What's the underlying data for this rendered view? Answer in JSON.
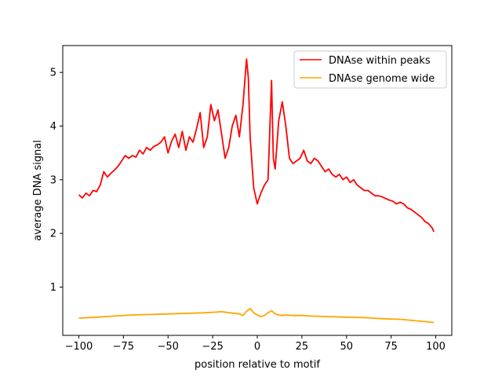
{
  "chart_data": {
    "type": "line",
    "xlabel": "position relative to motif",
    "ylabel": "average DNA signal",
    "xlim": [
      -109,
      109
    ],
    "ylim": [
      0.1,
      5.5
    ],
    "xticks": [
      -100,
      -75,
      -50,
      -25,
      0,
      25,
      50,
      75,
      100
    ],
    "xtick_labels": [
      "−100",
      "−75",
      "−50",
      "−25",
      "0",
      "25",
      "50",
      "75",
      "100"
    ],
    "yticks": [
      1,
      2,
      3,
      4,
      5
    ],
    "ytick_labels": [
      "1",
      "2",
      "3",
      "4",
      "5"
    ],
    "grid": false,
    "legend_position": "top-right",
    "series": [
      {
        "name": "DNAse within peaks",
        "color": "#ff0000",
        "x": [
          -100,
          -98,
          -96,
          -94,
          -92,
          -90,
          -88,
          -86,
          -84,
          -82,
          -80,
          -78,
          -76,
          -74,
          -72,
          -70,
          -68,
          -66,
          -64,
          -62,
          -60,
          -58,
          -56,
          -54,
          -52,
          -50,
          -48,
          -46,
          -44,
          -42,
          -40,
          -38,
          -36,
          -34,
          -32,
          -30,
          -28,
          -26,
          -24,
          -22,
          -20,
          -18,
          -16,
          -14,
          -12,
          -10,
          -8,
          -6,
          -5,
          -4,
          -2,
          0,
          2,
          4,
          6,
          8,
          9,
          10,
          12,
          14,
          16,
          18,
          20,
          22,
          24,
          26,
          28,
          30,
          32,
          34,
          36,
          38,
          40,
          42,
          44,
          46,
          48,
          50,
          52,
          54,
          56,
          58,
          60,
          62,
          64,
          66,
          68,
          70,
          72,
          74,
          76,
          78,
          80,
          82,
          84,
          86,
          88,
          90,
          92,
          94,
          96,
          98,
          99
        ],
        "y": [
          2.72,
          2.66,
          2.75,
          2.7,
          2.8,
          2.78,
          2.9,
          3.15,
          3.05,
          3.12,
          3.18,
          3.25,
          3.35,
          3.45,
          3.4,
          3.45,
          3.42,
          3.55,
          3.48,
          3.6,
          3.55,
          3.62,
          3.65,
          3.7,
          3.8,
          3.5,
          3.72,
          3.85,
          3.6,
          3.9,
          3.55,
          3.8,
          3.7,
          3.95,
          4.25,
          3.6,
          3.8,
          4.4,
          4.1,
          4.3,
          3.85,
          3.4,
          3.6,
          4.0,
          4.2,
          3.8,
          4.4,
          5.25,
          4.9,
          3.8,
          2.85,
          2.55,
          2.75,
          2.9,
          3.0,
          4.85,
          3.4,
          3.2,
          4.1,
          4.45,
          4.0,
          3.4,
          3.3,
          3.35,
          3.4,
          3.55,
          3.35,
          3.3,
          3.4,
          3.35,
          3.25,
          3.15,
          3.2,
          3.1,
          3.05,
          3.1,
          3.0,
          3.05,
          2.95,
          3.0,
          2.9,
          2.85,
          2.8,
          2.8,
          2.75,
          2.7,
          2.7,
          2.68,
          2.65,
          2.62,
          2.6,
          2.55,
          2.58,
          2.55,
          2.48,
          2.45,
          2.4,
          2.35,
          2.3,
          2.22,
          2.18,
          2.1,
          2.03
        ]
      },
      {
        "name": "DNAse genome wide",
        "color": "#ffa500",
        "x": [
          -100,
          -90,
          -80,
          -70,
          -60,
          -50,
          -40,
          -30,
          -25,
          -20,
          -15,
          -10,
          -8,
          -6,
          -4,
          -2,
          0,
          2,
          4,
          6,
          8,
          10,
          12,
          14,
          16,
          20,
          25,
          30,
          40,
          50,
          60,
          70,
          80,
          90,
          99
        ],
        "y": [
          0.42,
          0.44,
          0.46,
          0.48,
          0.49,
          0.5,
          0.51,
          0.52,
          0.53,
          0.54,
          0.52,
          0.5,
          0.47,
          0.55,
          0.6,
          0.52,
          0.48,
          0.45,
          0.47,
          0.52,
          0.56,
          0.5,
          0.48,
          0.47,
          0.48,
          0.47,
          0.47,
          0.46,
          0.45,
          0.44,
          0.43,
          0.41,
          0.4,
          0.37,
          0.34
        ]
      }
    ]
  }
}
